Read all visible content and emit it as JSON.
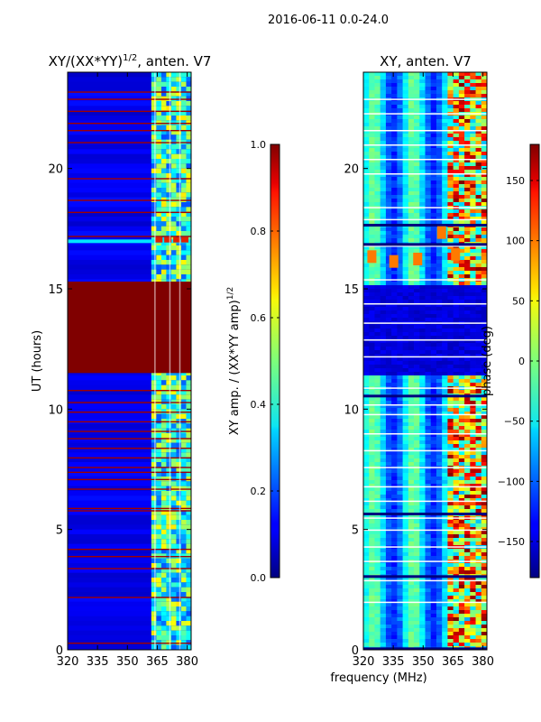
{
  "figure": {
    "suptitle": "2016-06-11 0.0-24.0"
  },
  "chart_data": [
    {
      "type": "heatmap",
      "title_prefix": "XY/(XX*YY)",
      "title_exp": "1/2",
      "title_suffix": ", anten. V7",
      "xlabel": "",
      "ylabel": "UT (hours)",
      "xlim": [
        320,
        382
      ],
      "ylim": [
        0,
        24
      ],
      "xticks": [
        320,
        335,
        350,
        365,
        380
      ],
      "yticks": [
        0,
        5,
        10,
        15,
        20
      ],
      "colorbar": {
        "label_prefix": "XY amp. / (XX*YY amp)",
        "label_exp": "1/2",
        "range": [
          0.0,
          1.0
        ],
        "ticks": [
          0.0,
          0.2,
          0.4,
          0.6,
          0.8,
          1.0
        ],
        "tick_labels": [
          "0.0",
          "0.2",
          "0.4",
          "0.6",
          "0.8",
          "1.0"
        ],
        "colormap": "jet"
      }
    },
    {
      "type": "heatmap",
      "title": "XY, anten. V7",
      "xlabel": "frequency (MHz)",
      "ylabel": "",
      "xlim": [
        320,
        382
      ],
      "ylim": [
        0,
        24
      ],
      "xticks": [
        320,
        335,
        350,
        365,
        380
      ],
      "yticks": [
        0,
        5,
        10,
        15,
        20
      ],
      "colorbar": {
        "label": "phase (deg)",
        "range": [
          -180,
          180
        ],
        "ticks": [
          -150,
          -100,
          -50,
          0,
          50,
          100,
          150
        ],
        "tick_labels": [
          "−150",
          "−100",
          "−50",
          "0",
          "50",
          "100",
          "150"
        ],
        "colormap": "jet"
      }
    }
  ]
}
